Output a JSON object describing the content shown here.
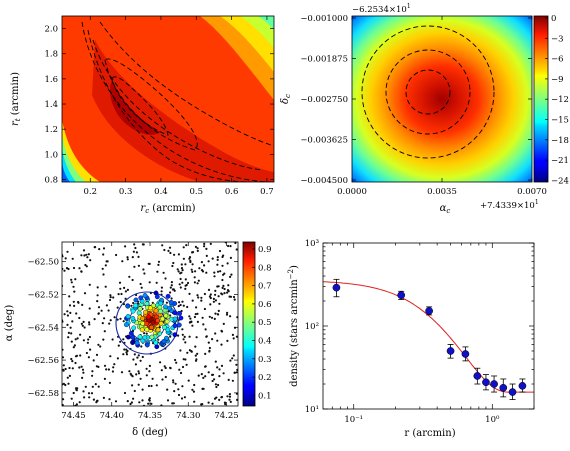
{
  "chart_data": [
    {
      "type": "heatmap",
      "panel": "top-left",
      "xlabel": "r_c (arcmin)",
      "ylabel": "r_t (arcmin)",
      "xlim": [
        0.12,
        0.72
      ],
      "ylim": [
        0.78,
        2.1
      ],
      "x_ticks": [
        "0.2",
        "0.3",
        "0.4",
        "0.5",
        "0.6",
        "0.7"
      ],
      "y_ticks": [
        "0.8",
        "1.0",
        "1.2",
        "1.4",
        "1.6",
        "1.8",
        "2.0"
      ],
      "contours": "dashed, elongated diagonal valleys centered near r_c 0.33, r_t 1.3",
      "colormap": "jet"
    },
    {
      "type": "heatmap",
      "panel": "top-right",
      "xlabel": "α_c",
      "ylabel": "δ_c",
      "x_ticks": [
        "0.0000",
        "0.0035",
        "0.0070"
      ],
      "x_offset": "+7.4339×10¹",
      "y_ticks": [
        "−0.001000",
        "−0.001875",
        "−0.002750",
        "−0.003625",
        "−0.004500"
      ],
      "y_offset": "−6.2534×10¹",
      "colorbar_ticks": [
        "0",
        "−3",
        "−6",
        "−9",
        "−12",
        "−15",
        "−18",
        "−21",
        "−24"
      ],
      "contours": "three concentric dashed circles",
      "colormap": "jet"
    },
    {
      "type": "scatter",
      "panel": "bottom-left",
      "xlabel": "δ (deg)",
      "ylabel": "α (deg)",
      "x_ticks": [
        "74.45",
        "74.40",
        "74.35",
        "74.30",
        "74.25"
      ],
      "y_ticks": [
        "−62.50",
        "−62.52",
        "−62.54",
        "−62.56",
        "−62.58"
      ],
      "colorbar_ticks": [
        "0.9",
        "0.8",
        "0.7",
        "0.6",
        "0.5",
        "0.4",
        "0.3",
        "0.2",
        "0.1"
      ],
      "field_points": "black dots (membership ~0)",
      "cluster_center": [
        74.348,
        -62.536
      ],
      "circles": 2
    },
    {
      "type": "scatter",
      "panel": "bottom-right",
      "xlabel": "r (arcmin)",
      "ylabel": "density (stars arcmin⁻²)",
      "xscale": "log",
      "yscale": "log",
      "xlim": [
        0.06,
        2.0
      ],
      "ylim": [
        10,
        1000
      ],
      "x_ticks": [
        "10⁻¹",
        "10⁰"
      ],
      "y_ticks": [
        "10³",
        "10²",
        "10¹"
      ],
      "points": [
        {
          "r": 0.075,
          "density": 290,
          "err_lo": 225,
          "err_hi": 365
        },
        {
          "r": 0.22,
          "density": 235,
          "err_lo": 208,
          "err_hi": 262
        },
        {
          "r": 0.35,
          "density": 152,
          "err_lo": 136,
          "err_hi": 170
        },
        {
          "r": 0.5,
          "density": 50,
          "err_lo": 41,
          "err_hi": 60
        },
        {
          "r": 0.64,
          "density": 46,
          "err_lo": 38,
          "err_hi": 56
        },
        {
          "r": 0.78,
          "density": 25,
          "err_lo": 20,
          "err_hi": 31
        },
        {
          "r": 0.9,
          "density": 21,
          "err_lo": 17,
          "err_hi": 26
        },
        {
          "r": 1.03,
          "density": 20,
          "err_lo": 16,
          "err_hi": 25
        },
        {
          "r": 1.2,
          "density": 18,
          "err_lo": 14,
          "err_hi": 23
        },
        {
          "r": 1.4,
          "density": 16,
          "err_lo": 13,
          "err_hi": 20
        },
        {
          "r": 1.65,
          "density": 19,
          "err_lo": 16,
          "err_hi": 23
        }
      ],
      "model": {
        "type": "King",
        "central_density": 340,
        "core_radius": 0.33,
        "tidal_radius": 1.3,
        "background": 16,
        "color": "#e02020"
      }
    }
  ],
  "labels": {
    "p1_xlabel": "r",
    "p1_xsub": "c",
    "p1_xunit": " (arcmin)",
    "p1_ylabel": "r",
    "p1_ysub": "t",
    "p1_yunit": " (arcmin)",
    "p2_xlabel": "α",
    "p2_xsub": "c",
    "p2_ylabel": "δ",
    "p2_ysub": "c",
    "p2_offset_top": "−6.2534×10",
    "p2_offset_top_exp": "1",
    "p2_offset_bottom": "+7.4339×10",
    "p2_offset_bottom_exp": "1",
    "p3_xlabel": "δ (deg)",
    "p3_ylabel": "α (deg)",
    "p4_xlabel": "r (arcmin)",
    "p4_ylabel_main": "density (stars arcmin",
    "p4_ylabel_exp": "−2",
    "p4_ylabel_end": ")"
  }
}
